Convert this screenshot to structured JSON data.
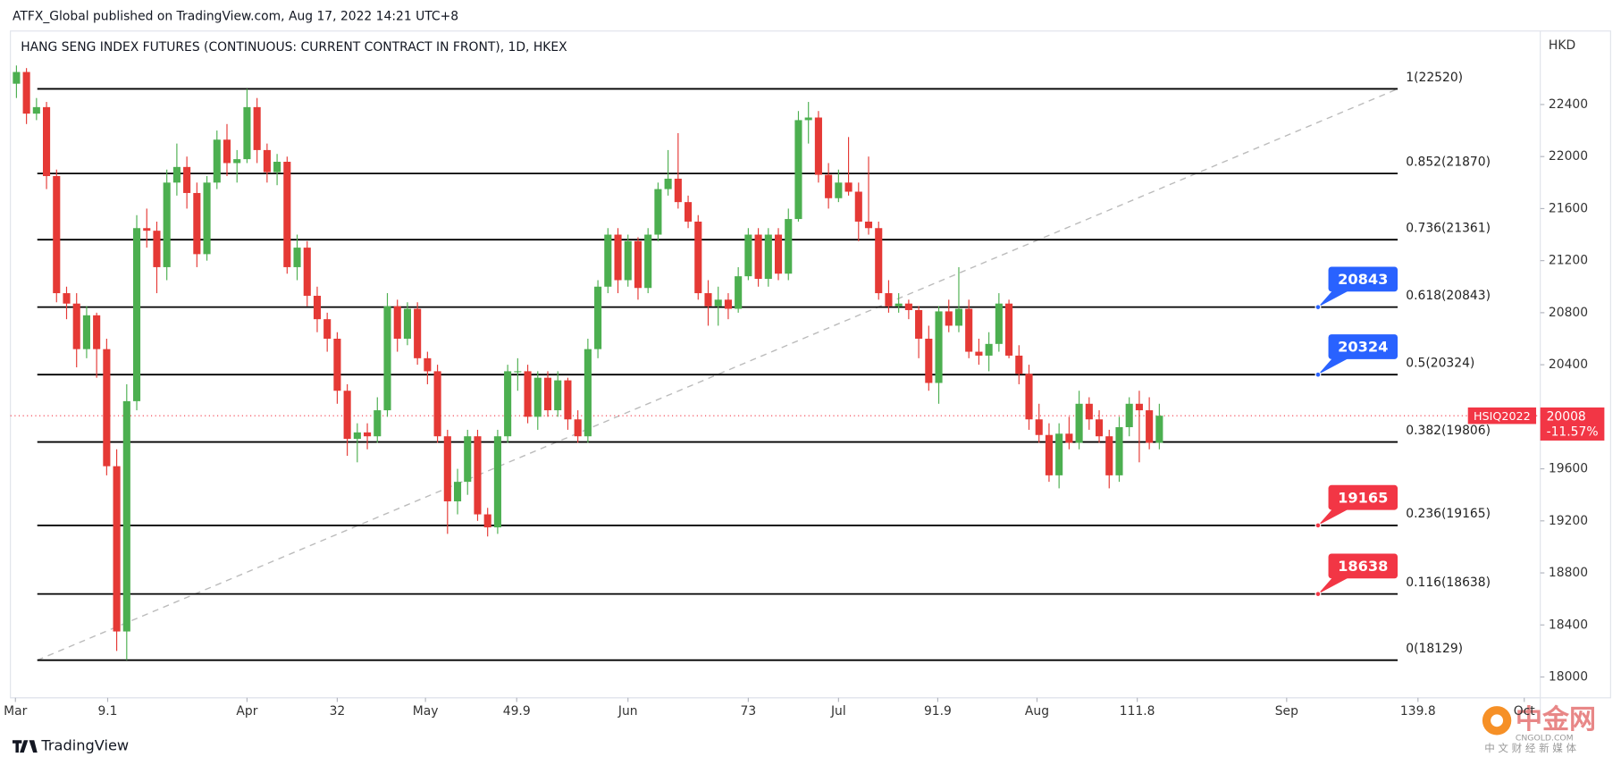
{
  "chart_data": {
    "type": "candlestick",
    "source": "ATFX_Global published on TradingView.com, Aug 17, 2022 14:21 UTC+8",
    "title": "HANG SENG INDEX FUTURES (CONTINUOUS: CURRENT CONTRACT IN FRONT), 1D, HKEX",
    "currency": "HKD",
    "up_color": "#4caf50",
    "down_color": "#e53935",
    "ohlc": [
      [
        22560,
        22700,
        22450,
        22650
      ],
      [
        22650,
        22680,
        22250,
        22330
      ],
      [
        22330,
        22450,
        22280,
        22380
      ],
      [
        22380,
        22420,
        21750,
        21850
      ],
      [
        21850,
        21900,
        20880,
        20950
      ],
      [
        20950,
        21000,
        20750,
        20870
      ],
      [
        20870,
        20950,
        20380,
        20520
      ],
      [
        20520,
        20850,
        20450,
        20780
      ],
      [
        20780,
        20800,
        20300,
        20520
      ],
      [
        20520,
        20600,
        19550,
        19620
      ],
      [
        19620,
        19750,
        18200,
        18350
      ],
      [
        18350,
        20250,
        18130,
        20120
      ],
      [
        20120,
        21550,
        20050,
        21450
      ],
      [
        21450,
        21600,
        21300,
        21430
      ],
      [
        21430,
        21500,
        20950,
        21150
      ],
      [
        21150,
        21900,
        21050,
        21800
      ],
      [
        21800,
        22100,
        21700,
        21920
      ],
      [
        21920,
        22000,
        21600,
        21720
      ],
      [
        21720,
        21800,
        21150,
        21250
      ],
      [
        21250,
        21850,
        21200,
        21800
      ],
      [
        21800,
        22200,
        21750,
        22130
      ],
      [
        22130,
        22250,
        21850,
        21950
      ],
      [
        21950,
        22050,
        21800,
        21980
      ],
      [
        21980,
        22520,
        21950,
        22380
      ],
      [
        22380,
        22450,
        21950,
        22050
      ],
      [
        22050,
        22100,
        21800,
        21880
      ],
      [
        21880,
        22020,
        21780,
        21960
      ],
      [
        21960,
        22000,
        21100,
        21150
      ],
      [
        21150,
        21400,
        21050,
        21300
      ],
      [
        21300,
        21350,
        20850,
        20930
      ],
      [
        20930,
        21000,
        20650,
        20750
      ],
      [
        20750,
        20800,
        20500,
        20600
      ],
      [
        20600,
        20650,
        20100,
        20200
      ],
      [
        20200,
        20250,
        19700,
        19830
      ],
      [
        19830,
        19950,
        19650,
        19880
      ],
      [
        19880,
        19950,
        19750,
        19850
      ],
      [
        19850,
        20150,
        19800,
        20050
      ],
      [
        20050,
        20950,
        20000,
        20850
      ],
      [
        20850,
        20900,
        20500,
        20600
      ],
      [
        20600,
        20880,
        20550,
        20830
      ],
      [
        20830,
        20880,
        20400,
        20450
      ],
      [
        20450,
        20500,
        20250,
        20350
      ],
      [
        20350,
        20400,
        19800,
        19850
      ],
      [
        19850,
        19900,
        19100,
        19350
      ],
      [
        19350,
        19600,
        19250,
        19500
      ],
      [
        19500,
        19900,
        19400,
        19850
      ],
      [
        19850,
        19900,
        19200,
        19250
      ],
      [
        19250,
        19300,
        19080,
        19150
      ],
      [
        19150,
        19900,
        19100,
        19850
      ],
      [
        19850,
        20400,
        19800,
        20350
      ],
      [
        20350,
        20450,
        20200,
        20350
      ],
      [
        20350,
        20400,
        19950,
        20000
      ],
      [
        20000,
        20350,
        19900,
        20300
      ],
      [
        20300,
        20350,
        20000,
        20050
      ],
      [
        20050,
        20350,
        20000,
        20280
      ],
      [
        20280,
        20300,
        19900,
        19980
      ],
      [
        19980,
        20050,
        19800,
        19850
      ],
      [
        19850,
        20600,
        19800,
        20520
      ],
      [
        20520,
        21050,
        20450,
        21000
      ],
      [
        21000,
        21450,
        20950,
        21400
      ],
      [
        21400,
        21450,
        20950,
        21050
      ],
      [
        21050,
        21400,
        21000,
        21350
      ],
      [
        21350,
        21380,
        20900,
        20990
      ],
      [
        20990,
        21450,
        20950,
        21400
      ],
      [
        21400,
        21800,
        21350,
        21750
      ],
      [
        21750,
        22050,
        21700,
        21830
      ],
      [
        21830,
        22180,
        21600,
        21650
      ],
      [
        21650,
        21700,
        21450,
        21500
      ],
      [
        21500,
        21550,
        20900,
        20950
      ],
      [
        20950,
        21050,
        20700,
        20850
      ],
      [
        20850,
        21000,
        20700,
        20900
      ],
      [
        20900,
        20950,
        20750,
        20830
      ],
      [
        20830,
        21150,
        20800,
        21080
      ],
      [
        21080,
        21450,
        21050,
        21400
      ],
      [
        21400,
        21450,
        21000,
        21060
      ],
      [
        21060,
        21450,
        21000,
        21400
      ],
      [
        21400,
        21450,
        21050,
        21100
      ],
      [
        21100,
        21600,
        21050,
        21520
      ],
      [
        21520,
        22350,
        21500,
        22280
      ],
      [
        22280,
        22420,
        22100,
        22300
      ],
      [
        22300,
        22350,
        21800,
        21860
      ],
      [
        21860,
        21950,
        21600,
        21680
      ],
      [
        21680,
        21900,
        21650,
        21800
      ],
      [
        21800,
        22150,
        21700,
        21730
      ],
      [
        21730,
        21800,
        21350,
        21500
      ],
      [
        21500,
        22000,
        21400,
        21450
      ],
      [
        21450,
        21500,
        20900,
        20950
      ],
      [
        20950,
        21050,
        20800,
        20850
      ],
      [
        20850,
        20950,
        20800,
        20870
      ],
      [
        20870,
        20900,
        20750,
        20820
      ],
      [
        20820,
        20850,
        20450,
        20600
      ],
      [
        20600,
        20700,
        20200,
        20260
      ],
      [
        20260,
        20850,
        20100,
        20810
      ],
      [
        20810,
        20900,
        20650,
        20700
      ],
      [
        20700,
        21150,
        20650,
        20830
      ],
      [
        20830,
        20900,
        20450,
        20500
      ],
      [
        20500,
        20600,
        20400,
        20470
      ],
      [
        20470,
        20650,
        20350,
        20560
      ],
      [
        20560,
        20950,
        20500,
        20870
      ],
      [
        20870,
        20900,
        20450,
        20470
      ],
      [
        20470,
        20550,
        20250,
        20330
      ],
      [
        20330,
        20400,
        19900,
        19980
      ],
      [
        19980,
        20100,
        19800,
        19860
      ],
      [
        19860,
        19950,
        19500,
        19550
      ],
      [
        19550,
        19950,
        19450,
        19870
      ],
      [
        19870,
        20000,
        19750,
        19800
      ],
      [
        19800,
        20200,
        19750,
        20100
      ],
      [
        20100,
        20150,
        19900,
        19980
      ],
      [
        19980,
        20050,
        19800,
        19850
      ],
      [
        19850,
        19900,
        19450,
        19550
      ],
      [
        19550,
        20000,
        19500,
        19920
      ],
      [
        19920,
        20150,
        19850,
        20100
      ],
      [
        20100,
        20200,
        19650,
        20050
      ],
      [
        20050,
        20150,
        19750,
        19800
      ],
      [
        19800,
        20100,
        19750,
        20008
      ]
    ],
    "xlim": [
      -0.6,
      152
    ],
    "xticks": [
      {
        "value": -0.1,
        "label": "Mar"
      },
      9.1,
      {
        "value": 23,
        "label": "Apr"
      },
      32,
      {
        "value": 40.8,
        "label": "May"
      },
      49.9,
      {
        "value": 61,
        "label": "Jun"
      },
      73,
      {
        "value": 82,
        "label": "Jul"
      },
      91.9,
      {
        "value": 101.8,
        "label": "Aug"
      },
      111.8,
      {
        "value": 126.7,
        "label": "Sep"
      },
      139.8,
      {
        "value": 150.4,
        "label": "Oct"
      }
    ],
    "ylim": [
      17840,
      22965
    ],
    "yticks": [
      18000,
      18400,
      18800,
      19200,
      19600,
      20000,
      20400,
      20800,
      21200,
      21600,
      22000,
      22400
    ],
    "grid": false,
    "fib_levels": [
      {
        "label": "1(22520)",
        "value": 22520
      },
      {
        "label": "0.852(21870)",
        "value": 21870
      },
      {
        "label": "0.736(21361)",
        "value": 21361
      },
      {
        "label": "0.618(20843)",
        "value": 20843
      },
      {
        "label": "0.5(20324)",
        "value": 20324
      },
      {
        "label": "0.382(19806)",
        "value": 19806
      },
      {
        "label": "0.236(19165)",
        "value": 19165
      },
      {
        "label": "0.116(18638)",
        "value": 18638
      },
      {
        "label": "0(18129)",
        "value": 18129
      }
    ],
    "callouts": [
      {
        "value": 20843,
        "color": "#2962ff"
      },
      {
        "value": 20324,
        "color": "#2962ff"
      },
      {
        "value": 19165,
        "color": "#f23645"
      },
      {
        "value": 18638,
        "color": "#f23645"
      }
    ],
    "last_price": {
      "value": 20008,
      "change": "-11.57%",
      "symbol": "HSIQ2022",
      "color": "#f23645"
    }
  },
  "footer": {
    "brand": "TradingView",
    "watermark": "中金网",
    "watermark_site": "CNGOLD.COM",
    "watermark_tagline": "中 文 财 经 新 媒 体"
  }
}
